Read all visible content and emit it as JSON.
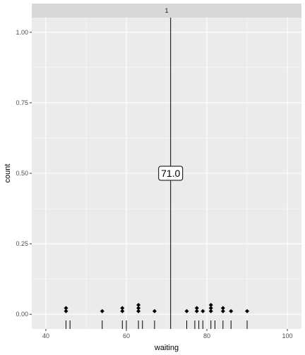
{
  "chart_data": {
    "type": "scatter",
    "facet_label": "1",
    "xlabel": "waiting",
    "ylabel": "count",
    "xlim": [
      36.5,
      103.5
    ],
    "ylim": [
      -0.052,
      1.052
    ],
    "x_ticks": [
      40,
      60,
      80,
      100
    ],
    "x_tick_labels": [
      "40",
      "60",
      "80",
      "100"
    ],
    "x_minor_ticks": [
      50,
      70,
      90
    ],
    "y_ticks": [
      0,
      0.25,
      0.5,
      0.75,
      1.0
    ],
    "y_tick_labels": [
      "0.00",
      "0.25",
      "0.50",
      "0.75",
      "1.00"
    ],
    "y_minor_ticks": [
      0.125,
      0.375,
      0.625,
      0.875
    ],
    "grid": true,
    "dots": [
      {
        "x": 45,
        "y": 0.011
      },
      {
        "x": 45,
        "y": 0.022
      },
      {
        "x": 54,
        "y": 0.011
      },
      {
        "x": 59,
        "y": 0.011
      },
      {
        "x": 59,
        "y": 0.022
      },
      {
        "x": 63,
        "y": 0.011
      },
      {
        "x": 63,
        "y": 0.022
      },
      {
        "x": 63,
        "y": 0.033
      },
      {
        "x": 67,
        "y": 0.011
      },
      {
        "x": 75,
        "y": 0.011
      },
      {
        "x": 77.5,
        "y": 0.011
      },
      {
        "x": 77.5,
        "y": 0.022
      },
      {
        "x": 79,
        "y": 0.011
      },
      {
        "x": 81,
        "y": 0.011
      },
      {
        "x": 81,
        "y": 0.022
      },
      {
        "x": 81,
        "y": 0.033
      },
      {
        "x": 84,
        "y": 0.011
      },
      {
        "x": 84,
        "y": 0.022
      },
      {
        "x": 86,
        "y": 0.011
      },
      {
        "x": 90,
        "y": 0.011
      }
    ],
    "rug": [
      45,
      46,
      54,
      59,
      60,
      63,
      64,
      67,
      75,
      77,
      78,
      79,
      81,
      82,
      84,
      86,
      90
    ],
    "vline": 71,
    "annotation": {
      "text": "71.0",
      "x": 71,
      "y": 0.5
    },
    "colors": {
      "panel_bg": "#ebebeb",
      "grid_major": "#ffffff",
      "strip_bg": "#d9d9d9",
      "ink": "#000000"
    }
  }
}
